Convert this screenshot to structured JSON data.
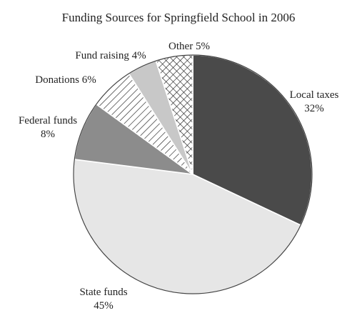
{
  "chart_data": {
    "type": "pie",
    "title": "Funding Sources for Springfield School in 2006",
    "slices": [
      {
        "name": "Local taxes",
        "value": 32,
        "value_label": "32%",
        "color": "#4a4a4a",
        "fill_style": "solid"
      },
      {
        "name": "State funds",
        "value": 45,
        "value_label": "45%",
        "color": "#e6e6e6",
        "fill_style": "solid"
      },
      {
        "name": "Federal funds",
        "value": 8,
        "value_label": "8%",
        "color": "#8c8c8c",
        "fill_style": "solid"
      },
      {
        "name": "Donations",
        "value": 6,
        "value_label": "6%",
        "color": "#ffffff",
        "fill_style": "diagonal-hatch"
      },
      {
        "name": "Fund raising",
        "value": 4,
        "value_label": "4%",
        "color": "#c8c8c8",
        "fill_style": "solid"
      },
      {
        "name": "Other",
        "value": 5,
        "value_label": "5%",
        "color": "#ffffff",
        "fill_style": "crosshatch"
      }
    ],
    "start": "12 o'clock",
    "direction": "clockwise",
    "legend": "none"
  }
}
